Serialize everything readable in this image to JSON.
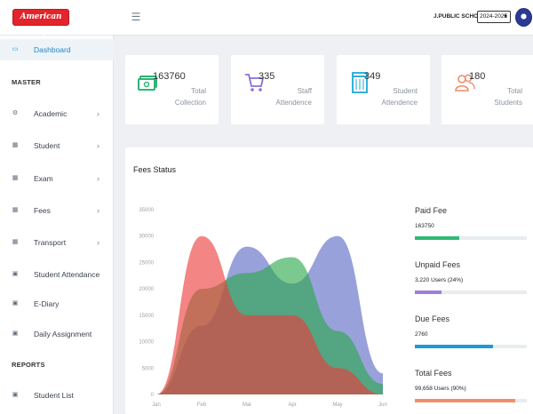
{
  "header": {
    "logo_text": "American Soft",
    "menu_icon": "hamburger-icon",
    "school_name": "J.PUBLIC SCHOOL",
    "session": "2024-2025"
  },
  "sidebar": {
    "dashboard": {
      "label": "Dashboard",
      "icon": "monitor-icon"
    },
    "section_master": "MASTER",
    "items": [
      {
        "label": "Academic",
        "icon": "cogs-icon",
        "has_children": true
      },
      {
        "label": "Student",
        "icon": "list-icon",
        "has_children": true
      },
      {
        "label": "Exam",
        "icon": "grid-icon",
        "has_children": true
      },
      {
        "label": "Fees",
        "icon": "grid-icon",
        "has_children": true
      },
      {
        "label": "Transport",
        "icon": "grid-icon",
        "has_children": true
      },
      {
        "label": "Student Attendance",
        "icon": "doc-icon",
        "has_children": false
      },
      {
        "label": "E-Diary",
        "icon": "doc-icon",
        "has_children": false
      },
      {
        "label": "Daily Assignment",
        "icon": "doc-icon",
        "has_children": false
      }
    ],
    "section_reports": "REPORTS",
    "report_items": [
      {
        "label": "Student List",
        "icon": "doc-icon"
      }
    ]
  },
  "stats": [
    {
      "value": "163760",
      "label": "Total Collection",
      "icon": "money-icon",
      "color": "#2bb673"
    },
    {
      "value": "335",
      "label": "Staff Attendence",
      "icon": "cart-icon",
      "color": "#8e6fd8"
    },
    {
      "value": "349",
      "label": "Student Attendence",
      "icon": "list-box-icon",
      "color": "#1ea7d8"
    },
    {
      "value": "180",
      "label": "Total Students",
      "icon": "users-icon",
      "color": "#f08a6a"
    }
  ],
  "fees_panel": {
    "title": "Fees Status",
    "summary": [
      {
        "title": "Paid Fee",
        "value": "163750",
        "progress": 0.4,
        "color": "#2dbb76"
      },
      {
        "title": "Unpaid Fees",
        "value": "3,220 Users (24%)",
        "progress": 0.24,
        "color": "#9b7fd8"
      },
      {
        "title": "Due Fees",
        "value": "2760",
        "progress": 0.7,
        "color": "#1b9ad6"
      },
      {
        "title": "Total Fees",
        "value": "99,658 Users (90%)",
        "progress": 0.9,
        "color": "#f0906a"
      }
    ]
  },
  "chart_data": {
    "type": "area",
    "categories": [
      "Jan",
      "Feb",
      "Mar",
      "Apr",
      "May",
      "Jun"
    ],
    "ylim": [
      0,
      35000
    ],
    "yticks": [
      "35000",
      "30000",
      "25000",
      "20000",
      "15000",
      "10000",
      "5000",
      "0"
    ],
    "grid": false,
    "legend": "none",
    "series": [
      {
        "color": "#5b67c4",
        "values": [
          0,
          13000,
          28000,
          21000,
          30000,
          4000
        ]
      },
      {
        "color": "#2aa84a",
        "values": [
          0,
          20000,
          23000,
          26000,
          12000,
          2000
        ]
      },
      {
        "color": "#ee3a3a",
        "values": [
          0,
          30000,
          15000,
          15000,
          5000,
          0
        ]
      }
    ]
  }
}
